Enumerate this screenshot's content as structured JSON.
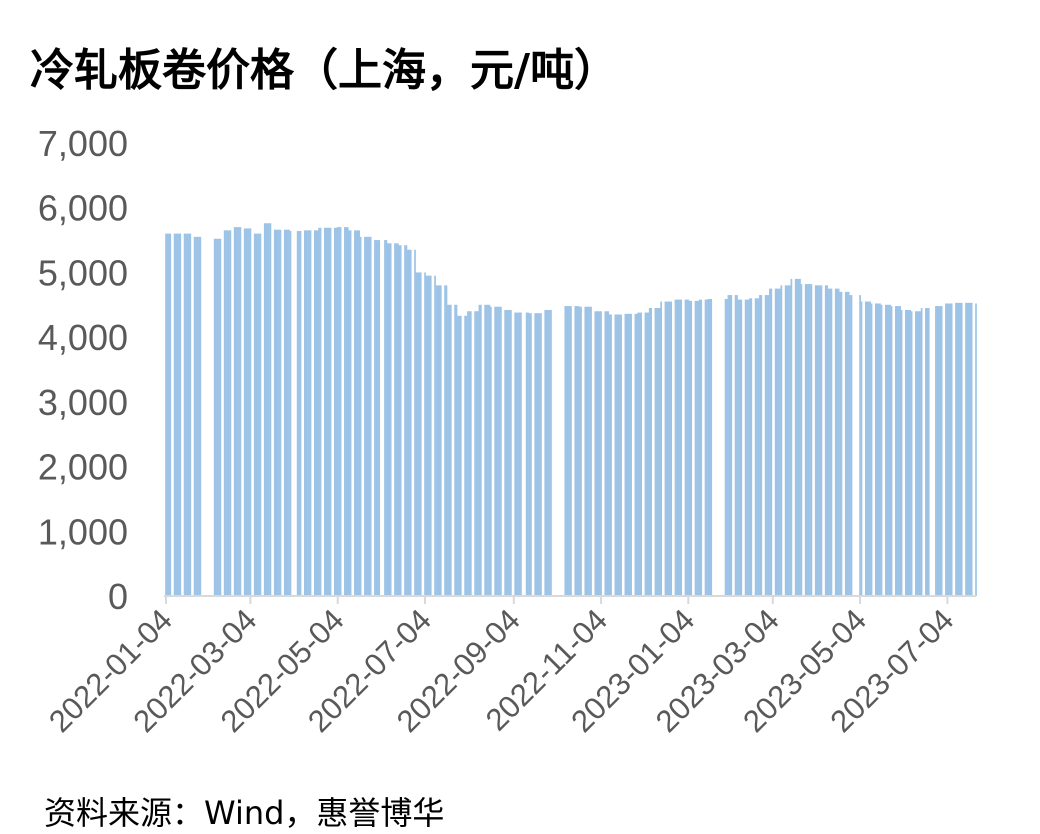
{
  "chart_data": {
    "type": "bar",
    "title": "冷轧板卷价格（上海，元/吨）",
    "source": "资料来源：Wind，惠誉博华",
    "xlabel": "",
    "ylabel": "",
    "ylim": [
      0,
      7000
    ],
    "yticks": [
      "0",
      "1,000",
      "2,000",
      "3,000",
      "4,000",
      "5,000",
      "6,000",
      "7,000"
    ],
    "ytick_values": [
      0,
      1000,
      2000,
      3000,
      4000,
      5000,
      6000,
      7000
    ],
    "xticks": [
      "2022-01-04",
      "2022-03-04",
      "2022-05-04",
      "2022-07-04",
      "2022-09-04",
      "2022-11-04",
      "2023-01-04",
      "2023-03-04",
      "2023-05-04",
      "2023-07-04"
    ],
    "x_range": [
      "2022-01-04",
      "2023-07-24"
    ],
    "grid": false,
    "legend": "none",
    "colors": {
      "bar": "#9DC3E6",
      "axis": "#D9D9D9",
      "tick_text": "#595959"
    },
    "series": [
      {
        "values": [
          [
            "2022-01-04",
            5600
          ],
          [
            "2022-01-14",
            5600
          ],
          [
            "2022-01-24",
            5550
          ],
          [
            "2022-02-07",
            5520
          ],
          [
            "2022-02-14",
            5650
          ],
          [
            "2022-02-21",
            5700
          ],
          [
            "2022-02-28",
            5680
          ],
          [
            "2022-03-07",
            5600
          ],
          [
            "2022-03-14",
            5760
          ],
          [
            "2022-03-21",
            5660
          ],
          [
            "2022-04-01",
            5640
          ],
          [
            "2022-04-11",
            5650
          ],
          [
            "2022-04-21",
            5690
          ],
          [
            "2022-05-04",
            5700
          ],
          [
            "2022-05-12",
            5650
          ],
          [
            "2022-05-20",
            5550
          ],
          [
            "2022-05-30",
            5500
          ],
          [
            "2022-06-08",
            5450
          ],
          [
            "2022-06-16",
            5420
          ],
          [
            "2022-06-22",
            5350
          ],
          [
            "2022-06-28",
            5000
          ],
          [
            "2022-07-05",
            4950
          ],
          [
            "2022-07-12",
            4800
          ],
          [
            "2022-07-20",
            4500
          ],
          [
            "2022-07-27",
            4330
          ],
          [
            "2022-08-03",
            4400
          ],
          [
            "2022-08-11",
            4500
          ],
          [
            "2022-08-19",
            4470
          ],
          [
            "2022-08-27",
            4420
          ],
          [
            "2022-09-05",
            4380
          ],
          [
            "2022-09-15",
            4370
          ],
          [
            "2022-09-25",
            4420
          ],
          [
            "2022-10-10",
            4480
          ],
          [
            "2022-10-20",
            4470
          ],
          [
            "2022-10-31",
            4400
          ],
          [
            "2022-11-10",
            4350
          ],
          [
            "2022-11-20",
            4360
          ],
          [
            "2022-11-30",
            4380
          ],
          [
            "2022-12-08",
            4450
          ],
          [
            "2022-12-16",
            4550
          ],
          [
            "2022-12-26",
            4580
          ],
          [
            "2023-01-05",
            4560
          ],
          [
            "2023-01-12",
            4580
          ],
          [
            "2023-01-18",
            4590
          ],
          [
            "2023-02-01",
            4650
          ],
          [
            "2023-02-08",
            4580
          ],
          [
            "2023-02-16",
            4600
          ],
          [
            "2023-02-23",
            4650
          ],
          [
            "2023-03-02",
            4750
          ],
          [
            "2023-03-10",
            4800
          ],
          [
            "2023-03-17",
            4900
          ],
          [
            "2023-03-24",
            4820
          ],
          [
            "2023-04-03",
            4800
          ],
          [
            "2023-04-12",
            4750
          ],
          [
            "2023-04-20",
            4700
          ],
          [
            "2023-04-27",
            4650
          ],
          [
            "2023-05-05",
            4550
          ],
          [
            "2023-05-12",
            4520
          ],
          [
            "2023-05-19",
            4500
          ],
          [
            "2023-05-26",
            4480
          ],
          [
            "2023-06-02",
            4420
          ],
          [
            "2023-06-09",
            4400
          ],
          [
            "2023-06-16",
            4450
          ],
          [
            "2023-06-25",
            4480
          ],
          [
            "2023-07-03",
            4520
          ],
          [
            "2023-07-10",
            4530
          ],
          [
            "2023-07-17",
            4530
          ],
          [
            "2023-07-24",
            4520
          ]
        ]
      }
    ]
  }
}
